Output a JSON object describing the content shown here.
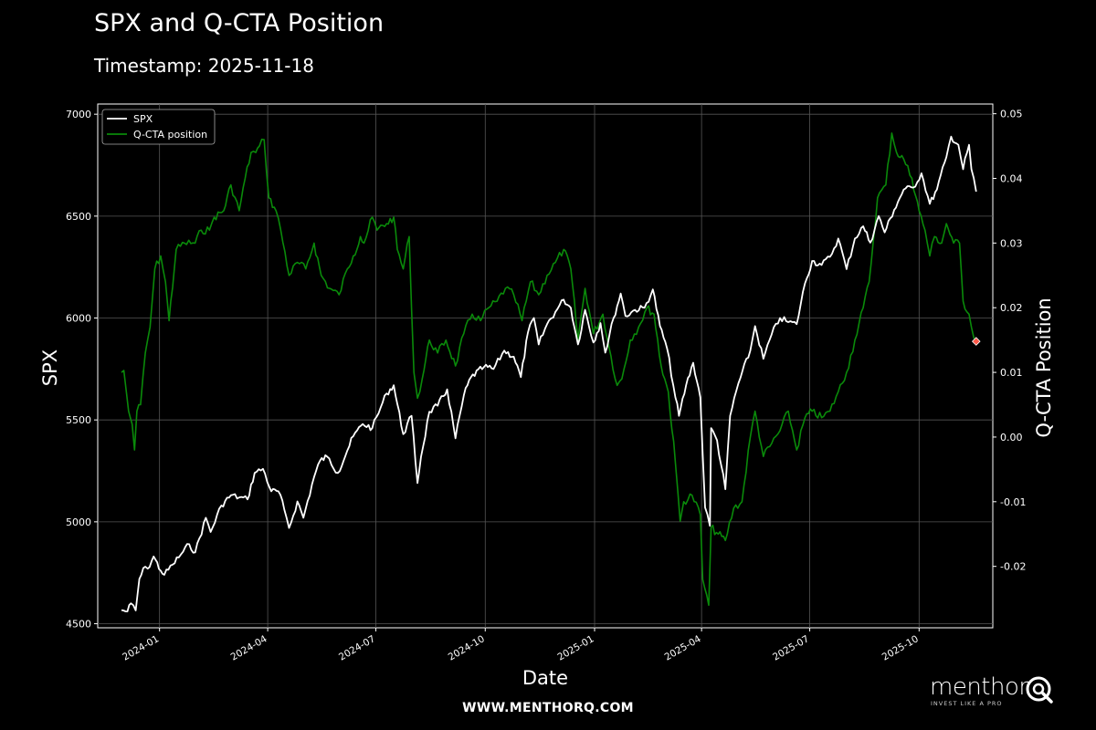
{
  "header": {
    "title": "SPX and Q-CTA Position",
    "subtitle": "Timestamp: 2025-11-18"
  },
  "footer": {
    "website": "WWW.MENTHORQ.COM",
    "brand": "menthor",
    "tagline": "INVEST LIKE A PRO"
  },
  "colors": {
    "background": "#000000",
    "spx": "#ffffff",
    "cta": "#0a8a0a",
    "marker": "#ff5a4a",
    "grid": "#555555"
  },
  "chart_data": {
    "type": "line",
    "xlabel": "Date",
    "ylabel_left": "SPX",
    "ylabel_right": "Q-CTA Position",
    "x_range": [
      "2023-11-10",
      "2025-12-02"
    ],
    "ylim_left": [
      4480,
      7050
    ],
    "ylim_right": [
      -0.0295,
      0.0515
    ],
    "x_ticks": [
      "2024-01",
      "2024-04",
      "2024-07",
      "2024-10",
      "2025-01",
      "2025-04",
      "2025-07",
      "2025-10"
    ],
    "y_ticks_left": [
      4500,
      5000,
      5500,
      6000,
      6500,
      7000
    ],
    "y_ticks_right": [
      "-0.02",
      "-0.01",
      "0.00",
      "0.01",
      "0.02",
      "0.03",
      "0.04",
      "0.05"
    ],
    "grid": true,
    "legend_position": "top-left",
    "series": [
      {
        "name": "SPX",
        "axis": "left",
        "points": [
          [
            "2023-11-30",
            4567
          ],
          [
            "2023-12-05",
            4560
          ],
          [
            "2023-12-08",
            4600
          ],
          [
            "2023-12-12",
            4565
          ],
          [
            "2023-12-15",
            4720
          ],
          [
            "2023-12-20",
            4780
          ],
          [
            "2023-12-22",
            4770
          ],
          [
            "2023-12-27",
            4830
          ],
          [
            "2024-01-02",
            4760
          ],
          [
            "2024-01-05",
            4740
          ],
          [
            "2024-01-12",
            4790
          ],
          [
            "2024-01-19",
            4840
          ],
          [
            "2024-01-26",
            4890
          ],
          [
            "2024-01-31",
            4850
          ],
          [
            "2024-02-09",
            5020
          ],
          [
            "2024-02-13",
            4950
          ],
          [
            "2024-02-22",
            5080
          ],
          [
            "2024-03-01",
            5130
          ],
          [
            "2024-03-08",
            5120
          ],
          [
            "2024-03-15",
            5110
          ],
          [
            "2024-03-21",
            5240
          ],
          [
            "2024-03-28",
            5260
          ],
          [
            "2024-04-04",
            5150
          ],
          [
            "2024-04-10",
            5150
          ],
          [
            "2024-04-15",
            5060
          ],
          [
            "2024-04-19",
            4970
          ],
          [
            "2024-04-26",
            5100
          ],
          [
            "2024-05-01",
            5020
          ],
          [
            "2024-05-10",
            5220
          ],
          [
            "2024-05-15",
            5300
          ],
          [
            "2024-05-21",
            5320
          ],
          [
            "2024-05-30",
            5240
          ],
          [
            "2024-06-07",
            5350
          ],
          [
            "2024-06-12",
            5420
          ],
          [
            "2024-06-20",
            5480
          ],
          [
            "2024-06-28",
            5460
          ],
          [
            "2024-07-05",
            5560
          ],
          [
            "2024-07-10",
            5630
          ],
          [
            "2024-07-16",
            5670
          ],
          [
            "2024-07-24",
            5430
          ],
          [
            "2024-07-31",
            5520
          ],
          [
            "2024-08-05",
            5190
          ],
          [
            "2024-08-08",
            5320
          ],
          [
            "2024-08-15",
            5540
          ],
          [
            "2024-08-22",
            5570
          ],
          [
            "2024-08-30",
            5650
          ],
          [
            "2024-09-06",
            5410
          ],
          [
            "2024-09-13",
            5620
          ],
          [
            "2024-09-19",
            5710
          ],
          [
            "2024-09-30",
            5760
          ],
          [
            "2024-10-08",
            5750
          ],
          [
            "2024-10-17",
            5840
          ],
          [
            "2024-10-25",
            5810
          ],
          [
            "2024-10-31",
            5710
          ],
          [
            "2024-11-06",
            5930
          ],
          [
            "2024-11-11",
            6000
          ],
          [
            "2024-11-15",
            5870
          ],
          [
            "2024-11-22",
            5970
          ],
          [
            "2024-11-29",
            6030
          ],
          [
            "2024-12-06",
            6090
          ],
          [
            "2024-12-12",
            6050
          ],
          [
            "2024-12-18",
            5870
          ],
          [
            "2024-12-24",
            6040
          ],
          [
            "2024-12-31",
            5880
          ],
          [
            "2025-01-06",
            5975
          ],
          [
            "2025-01-10",
            5830
          ],
          [
            "2025-01-17",
            6000
          ],
          [
            "2025-01-23",
            6120
          ],
          [
            "2025-01-27",
            6010
          ],
          [
            "2025-02-04",
            6040
          ],
          [
            "2025-02-12",
            6050
          ],
          [
            "2025-02-19",
            6140
          ],
          [
            "2025-02-25",
            5960
          ],
          [
            "2025-03-03",
            5850
          ],
          [
            "2025-03-10",
            5610
          ],
          [
            "2025-03-13",
            5520
          ],
          [
            "2025-03-19",
            5670
          ],
          [
            "2025-03-25",
            5780
          ],
          [
            "2025-03-31",
            5610
          ],
          [
            "2025-04-04",
            5070
          ],
          [
            "2025-04-08",
            4980
          ],
          [
            "2025-04-09",
            5460
          ],
          [
            "2025-04-14",
            5400
          ],
          [
            "2025-04-21",
            5160
          ],
          [
            "2025-04-25",
            5520
          ],
          [
            "2025-05-02",
            5680
          ],
          [
            "2025-05-12",
            5840
          ],
          [
            "2025-05-16",
            5960
          ],
          [
            "2025-05-23",
            5800
          ],
          [
            "2025-05-30",
            5920
          ],
          [
            "2025-06-06",
            6000
          ],
          [
            "2025-06-13",
            5980
          ],
          [
            "2025-06-20",
            5970
          ],
          [
            "2025-06-27",
            6170
          ],
          [
            "2025-07-03",
            6280
          ],
          [
            "2025-07-11",
            6260
          ],
          [
            "2025-07-18",
            6300
          ],
          [
            "2025-07-25",
            6390
          ],
          [
            "2025-08-01",
            6240
          ],
          [
            "2025-08-08",
            6390
          ],
          [
            "2025-08-15",
            6450
          ],
          [
            "2025-08-21",
            6370
          ],
          [
            "2025-08-28",
            6500
          ],
          [
            "2025-09-02",
            6420
          ],
          [
            "2025-09-10",
            6530
          ],
          [
            "2025-09-18",
            6630
          ],
          [
            "2025-09-26",
            6640
          ],
          [
            "2025-10-03",
            6710
          ],
          [
            "2025-10-10",
            6560
          ],
          [
            "2025-10-16",
            6630
          ],
          [
            "2025-10-24",
            6790
          ],
          [
            "2025-10-28",
            6890
          ],
          [
            "2025-11-03",
            6850
          ],
          [
            "2025-11-07",
            6730
          ],
          [
            "2025-11-12",
            6850
          ],
          [
            "2025-11-14",
            6730
          ],
          [
            "2025-11-18",
            6620
          ]
        ]
      },
      {
        "name": "Q-CTA position",
        "axis": "right",
        "points": [
          [
            "2023-11-30",
            0.01
          ],
          [
            "2023-12-02",
            0.0103
          ],
          [
            "2023-12-06",
            0.004
          ],
          [
            "2023-12-09",
            0.002
          ],
          [
            "2023-12-11",
            -0.002
          ],
          [
            "2023-12-13",
            0.004
          ],
          [
            "2023-12-16",
            0.005
          ],
          [
            "2023-12-20",
            0.013
          ],
          [
            "2023-12-24",
            0.017
          ],
          [
            "2023-12-28",
            0.026
          ],
          [
            "2024-01-02",
            0.028
          ],
          [
            "2024-01-06",
            0.024
          ],
          [
            "2024-01-09",
            0.018
          ],
          [
            "2024-01-15",
            0.029
          ],
          [
            "2024-01-22",
            0.03
          ],
          [
            "2024-01-31",
            0.03
          ],
          [
            "2024-02-05",
            0.032
          ],
          [
            "2024-02-12",
            0.032
          ],
          [
            "2024-02-16",
            0.034
          ],
          [
            "2024-02-24",
            0.035
          ],
          [
            "2024-03-01",
            0.039
          ],
          [
            "2024-03-08",
            0.035
          ],
          [
            "2024-03-13",
            0.04
          ],
          [
            "2024-03-18",
            0.044
          ],
          [
            "2024-03-22",
            0.044
          ],
          [
            "2024-03-25",
            0.045
          ],
          [
            "2024-03-29",
            0.046
          ],
          [
            "2024-04-02",
            0.037
          ],
          [
            "2024-04-08",
            0.035
          ],
          [
            "2024-04-12",
            0.032
          ],
          [
            "2024-04-19",
            0.025
          ],
          [
            "2024-04-26",
            0.027
          ],
          [
            "2024-05-03",
            0.026
          ],
          [
            "2024-05-10",
            0.03
          ],
          [
            "2024-05-16",
            0.025
          ],
          [
            "2024-05-23",
            0.023
          ],
          [
            "2024-05-31",
            0.022
          ],
          [
            "2024-06-07",
            0.026
          ],
          [
            "2024-06-12",
            0.028
          ],
          [
            "2024-06-18",
            0.031
          ],
          [
            "2024-06-21",
            0.03
          ],
          [
            "2024-06-28",
            0.034
          ],
          [
            "2024-07-02",
            0.032
          ],
          [
            "2024-07-10",
            0.033
          ],
          [
            "2024-07-16",
            0.034
          ],
          [
            "2024-07-19",
            0.029
          ],
          [
            "2024-07-24",
            0.026
          ],
          [
            "2024-07-29",
            0.031
          ],
          [
            "2024-08-02",
            0.01
          ],
          [
            "2024-08-05",
            0.006
          ],
          [
            "2024-08-09",
            0.009
          ],
          [
            "2024-08-15",
            0.015
          ],
          [
            "2024-08-22",
            0.013
          ],
          [
            "2024-08-29",
            0.015
          ],
          [
            "2024-09-06",
            0.011
          ],
          [
            "2024-09-13",
            0.016
          ],
          [
            "2024-09-20",
            0.019
          ],
          [
            "2024-09-27",
            0.018
          ],
          [
            "2024-10-04",
            0.02
          ],
          [
            "2024-10-11",
            0.021
          ],
          [
            "2024-10-18",
            0.023
          ],
          [
            "2024-10-25",
            0.022
          ],
          [
            "2024-11-01",
            0.018
          ],
          [
            "2024-11-08",
            0.024
          ],
          [
            "2024-11-15",
            0.022
          ],
          [
            "2024-11-22",
            0.025
          ],
          [
            "2024-11-29",
            0.027
          ],
          [
            "2024-12-06",
            0.029
          ],
          [
            "2024-12-12",
            0.026
          ],
          [
            "2024-12-18",
            0.015
          ],
          [
            "2024-12-24",
            0.023
          ],
          [
            "2024-12-31",
            0.016
          ],
          [
            "2025-01-08",
            0.019
          ],
          [
            "2025-01-13",
            0.014
          ],
          [
            "2025-01-20",
            0.008
          ],
          [
            "2025-01-24",
            0.009
          ],
          [
            "2025-01-31",
            0.015
          ],
          [
            "2025-02-07",
            0.017
          ],
          [
            "2025-02-14",
            0.02
          ],
          [
            "2025-02-20",
            0.019
          ],
          [
            "2025-02-26",
            0.011
          ],
          [
            "2025-03-04",
            0.007
          ],
          [
            "2025-03-10",
            -0.004
          ],
          [
            "2025-03-14",
            -0.013
          ],
          [
            "2025-03-17",
            -0.01
          ],
          [
            "2025-03-24",
            -0.009
          ],
          [
            "2025-03-31",
            -0.012
          ],
          [
            "2025-04-02",
            -0.022
          ],
          [
            "2025-04-07",
            -0.026
          ],
          [
            "2025-04-09",
            -0.014
          ],
          [
            "2025-04-15",
            -0.015
          ],
          [
            "2025-04-21",
            -0.016
          ],
          [
            "2025-04-28",
            -0.011
          ],
          [
            "2025-05-05",
            -0.01
          ],
          [
            "2025-05-12",
            0.0
          ],
          [
            "2025-05-16",
            0.004
          ],
          [
            "2025-05-23",
            -0.003
          ],
          [
            "2025-05-30",
            -0.001
          ],
          [
            "2025-06-06",
            0.001
          ],
          [
            "2025-06-13",
            0.004
          ],
          [
            "2025-06-20",
            -0.002
          ],
          [
            "2025-06-27",
            0.003
          ],
          [
            "2025-07-03",
            0.004
          ],
          [
            "2025-07-11",
            0.003
          ],
          [
            "2025-07-18",
            0.004
          ],
          [
            "2025-07-25",
            0.007
          ],
          [
            "2025-08-01",
            0.01
          ],
          [
            "2025-08-08",
            0.015
          ],
          [
            "2025-08-15",
            0.02
          ],
          [
            "2025-08-20",
            0.024
          ],
          [
            "2025-08-27",
            0.037
          ],
          [
            "2025-09-03",
            0.039
          ],
          [
            "2025-09-08",
            0.047
          ],
          [
            "2025-09-12",
            0.044
          ],
          [
            "2025-09-18",
            0.043
          ],
          [
            "2025-09-25",
            0.04
          ],
          [
            "2025-10-01",
            0.035
          ],
          [
            "2025-10-06",
            0.032
          ],
          [
            "2025-10-10",
            0.028
          ],
          [
            "2025-10-14",
            0.031
          ],
          [
            "2025-10-20",
            0.03
          ],
          [
            "2025-10-24",
            0.033
          ],
          [
            "2025-10-30",
            0.03
          ],
          [
            "2025-11-04",
            0.03
          ],
          [
            "2025-11-07",
            0.021
          ],
          [
            "2025-11-12",
            0.019
          ],
          [
            "2025-11-14",
            0.017
          ],
          [
            "2025-11-18",
            0.0148
          ]
        ]
      }
    ],
    "marker": {
      "date": "2025-11-18",
      "value": 0.0148,
      "axis": "right"
    }
  }
}
